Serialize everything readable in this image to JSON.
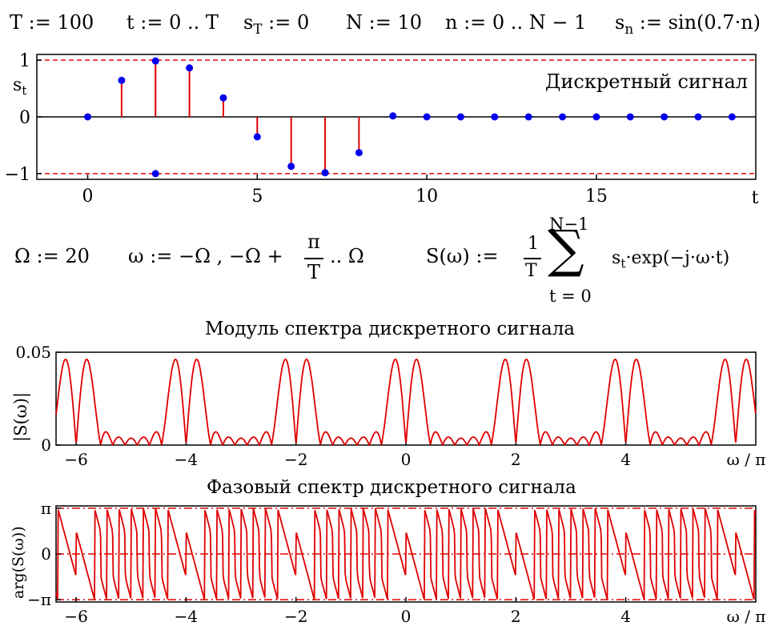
{
  "definitions_row1": {
    "T_def": "T := 100",
    "t_def": "t := 0 .. T",
    "sT_base": "s",
    "sT_sub": "T",
    "sT_rest": " := 0",
    "N_def": "N := 10",
    "n_def": "n := 0 .. N − 1",
    "sn_base": "s",
    "sn_sub": "n",
    "sn_rest": " := sin(0.7·n)"
  },
  "definitions_row2": {
    "omega_cap_def": "Ω := 20",
    "omega_def_left": "ω := −Ω , −Ω +",
    "pi_num": "π",
    "T_den": "T",
    "omega_def_right": ".. Ω",
    "S_def_left": "S(ω) :=",
    "one_num": "1",
    "T_den2": "T",
    "sum_upper": "N−1",
    "sum_symbol": "∑",
    "sum_lower": "t = 0",
    "st_base": "s",
    "st_sub": "t",
    "sum_body": "·exp(−j·ω·t)"
  },
  "colors": {
    "stem": "#e00000",
    "point": "#0000ee",
    "line": "#e00000",
    "refline": "#e00000",
    "axis": "#000000"
  },
  "chart_data": [
    {
      "type": "stem",
      "annotation": "Дискретный сигнал",
      "ylabel_base": "s",
      "ylabel_sub": "t",
      "xlabel": "t",
      "xlim": [
        -1.5,
        19.7
      ],
      "ylim": [
        -1.1,
        1.1
      ],
      "x_ticks": [
        "0",
        "5",
        "10",
        "15"
      ],
      "x_tick_values": [
        0,
        5,
        10,
        15
      ],
      "y_ticks": [
        "1",
        "0",
        "−1"
      ],
      "y_tick_values": [
        1,
        0,
        -1
      ],
      "ref_lines_y": [
        1,
        -1
      ],
      "x": [
        0,
        1,
        2,
        3,
        4,
        5,
        6,
        7,
        8,
        9,
        10,
        11,
        12,
        13,
        14,
        15,
        16,
        17,
        18,
        19
      ],
      "values": [
        0,
        0.644,
        0.985,
        0.863,
        0.335,
        -0.351,
        -0.872,
        -0.984,
        -0.631,
        0.017,
        0,
        0,
        0,
        0,
        0,
        0,
        0,
        0,
        0,
        0
      ],
      "extra_points": [
        {
          "x": 2,
          "y": -1
        }
      ]
    },
    {
      "type": "line",
      "title": "Модуль спектра дискретного сигнала",
      "ylabel": "|S(ω)|",
      "xlabel": "ω / π",
      "xlim": [
        -6.366,
        6.366
      ],
      "ylim": [
        0,
        0.05
      ],
      "x_ticks": [
        "−6",
        "−4",
        "−2",
        "0",
        "2",
        "4"
      ],
      "x_tick_values": [
        -6,
        -4,
        -2,
        0,
        2,
        4
      ],
      "y_ticks": [
        "0.05",
        "0"
      ],
      "y_tick_values": [
        0.05,
        0
      ],
      "signal": "|S(ω)|, S(ω) = (1/T)·Σ_{n=0}^{N−1} sin(0.7·n)·exp(−j·ω·n), T = 100, N = 10",
      "x_range_omega": [
        -20,
        20
      ]
    },
    {
      "type": "line",
      "title": "Фазовый спектр дискретного сигнала",
      "ylabel": "arg(S(ω))",
      "xlabel": "ω / π",
      "xlim": [
        -6.366,
        6.366
      ],
      "ylim": [
        -3.3,
        3.3
      ],
      "x_ticks": [
        "−6",
        "−4",
        "−2",
        "0",
        "2",
        "4"
      ],
      "x_tick_values": [
        -6,
        -4,
        -2,
        0,
        2,
        4
      ],
      "y_ticks": [
        "π",
        "0",
        "−π"
      ],
      "y_tick_values": [
        3.14159,
        0,
        -3.14159
      ],
      "ref_lines_y": [
        3.14159,
        0,
        -3.14159
      ],
      "signal": "arg(S(ω))",
      "x_range_omega": [
        -20,
        20
      ]
    }
  ]
}
